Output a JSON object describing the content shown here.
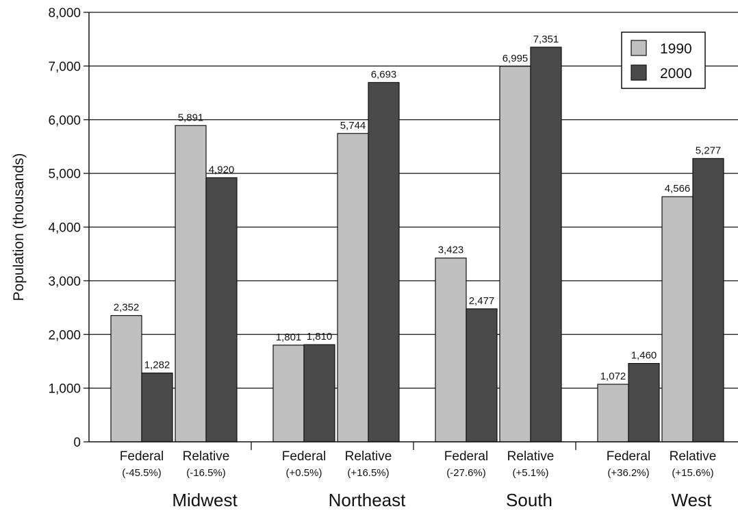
{
  "chart_data": {
    "type": "bar",
    "ylabel": "Population (thousands)",
    "ylim": [
      0,
      8000
    ],
    "yticks": [
      0,
      1000,
      2000,
      3000,
      4000,
      5000,
      6000,
      7000,
      8000
    ],
    "ytick_labels": [
      "0",
      "1,000",
      "2,000",
      "3,000",
      "4,000",
      "5,000",
      "6,000",
      "7,000",
      "8,000"
    ],
    "grid": true,
    "legend_position": "top-right",
    "series": [
      {
        "name": "1990",
        "color": "#c0c0c0"
      },
      {
        "name": "2000",
        "color": "#4a4a4a"
      }
    ],
    "regions": [
      {
        "name": "Midwest",
        "groups": [
          {
            "label": "Federal",
            "change": "(-45.5%)",
            "values": [
              2352,
              1282
            ],
            "value_labels": [
              "2,352",
              "1,282"
            ]
          },
          {
            "label": "Relative",
            "change": "(-16.5%)",
            "values": [
              5891,
              4920
            ],
            "value_labels": [
              "5,891",
              "4,920"
            ]
          }
        ]
      },
      {
        "name": "Northeast",
        "groups": [
          {
            "label": "Federal",
            "change": "(+0.5%)",
            "values": [
              1801,
              1810
            ],
            "value_labels": [
              "1,801",
              "1,810"
            ]
          },
          {
            "label": "Relative",
            "change": "(+16.5%)",
            "values": [
              5744,
              6693
            ],
            "value_labels": [
              "5,744",
              "6,693"
            ]
          }
        ]
      },
      {
        "name": "South",
        "groups": [
          {
            "label": "Federal",
            "change": "(-27.6%)",
            "values": [
              3423,
              2477
            ],
            "value_labels": [
              "3,423",
              "2,477"
            ]
          },
          {
            "label": "Relative",
            "change": "(+5.1%)",
            "values": [
              6995,
              7351
            ],
            "value_labels": [
              "6,995",
              "7,351"
            ]
          }
        ]
      },
      {
        "name": "West",
        "groups": [
          {
            "label": "Federal",
            "change": "(+36.2%)",
            "values": [
              1072,
              1460
            ],
            "value_labels": [
              "1,072",
              "1,460"
            ]
          },
          {
            "label": "Relative",
            "change": "(+15.6%)",
            "values": [
              4566,
              5277
            ],
            "value_labels": [
              "4,566",
              "5,277"
            ]
          }
        ]
      }
    ]
  }
}
